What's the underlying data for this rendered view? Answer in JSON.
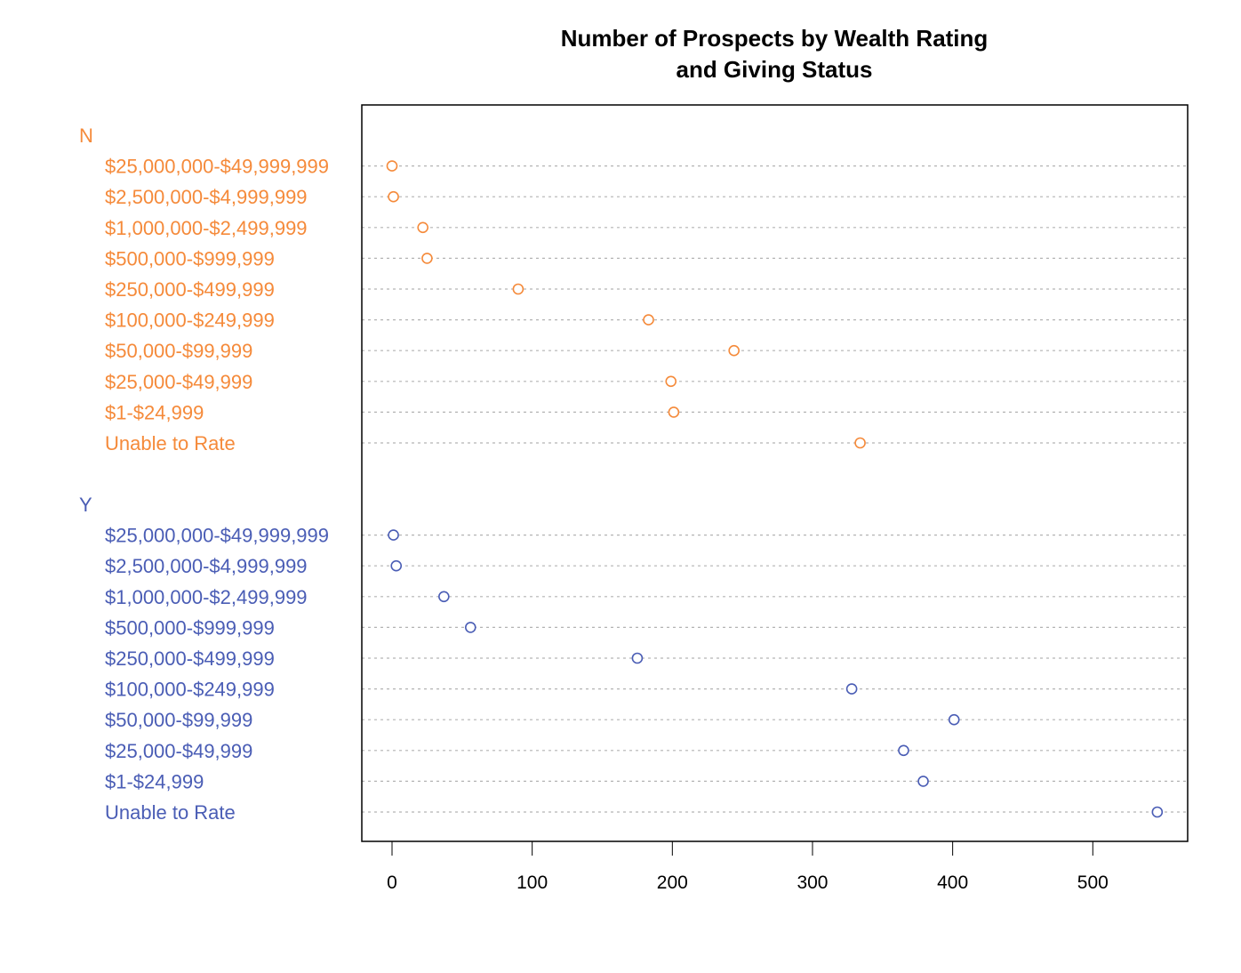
{
  "chart_data": {
    "type": "dotplot",
    "title": "Number of Prospects by Wealth Rating\nand Giving Status",
    "title_lines": [
      "Number of Prospects by Wealth Rating",
      "and Giving Status"
    ],
    "xlabel": "",
    "ylabel": "",
    "xlim": [
      -21,
      568
    ],
    "x_ticks": [
      0,
      100,
      200,
      300,
      400,
      500
    ],
    "grid": "dotted horizontal lines per row",
    "legend": null,
    "categories": [
      "$25,000,000-$49,999,999",
      "$2,500,000-$4,999,999",
      "$1,000,000-$2,499,999",
      "$500,000-$999,999",
      "$250,000-$499,999",
      "$100,000-$249,999",
      "$50,000-$99,999",
      "$25,000-$49,999",
      "$1-$24,999",
      "Unable to Rate"
    ],
    "series": [
      {
        "name": "N",
        "color": "#F58A3A",
        "values": [
          0,
          1,
          22,
          25,
          90,
          183,
          244,
          199,
          201,
          334
        ]
      },
      {
        "name": "Y",
        "color": "#4A5DB5",
        "values": [
          1,
          3,
          37,
          56,
          175,
          328,
          401,
          365,
          379,
          546
        ]
      }
    ]
  },
  "colors": {
    "grid": "#b3b3b3",
    "axis": "#000000"
  }
}
